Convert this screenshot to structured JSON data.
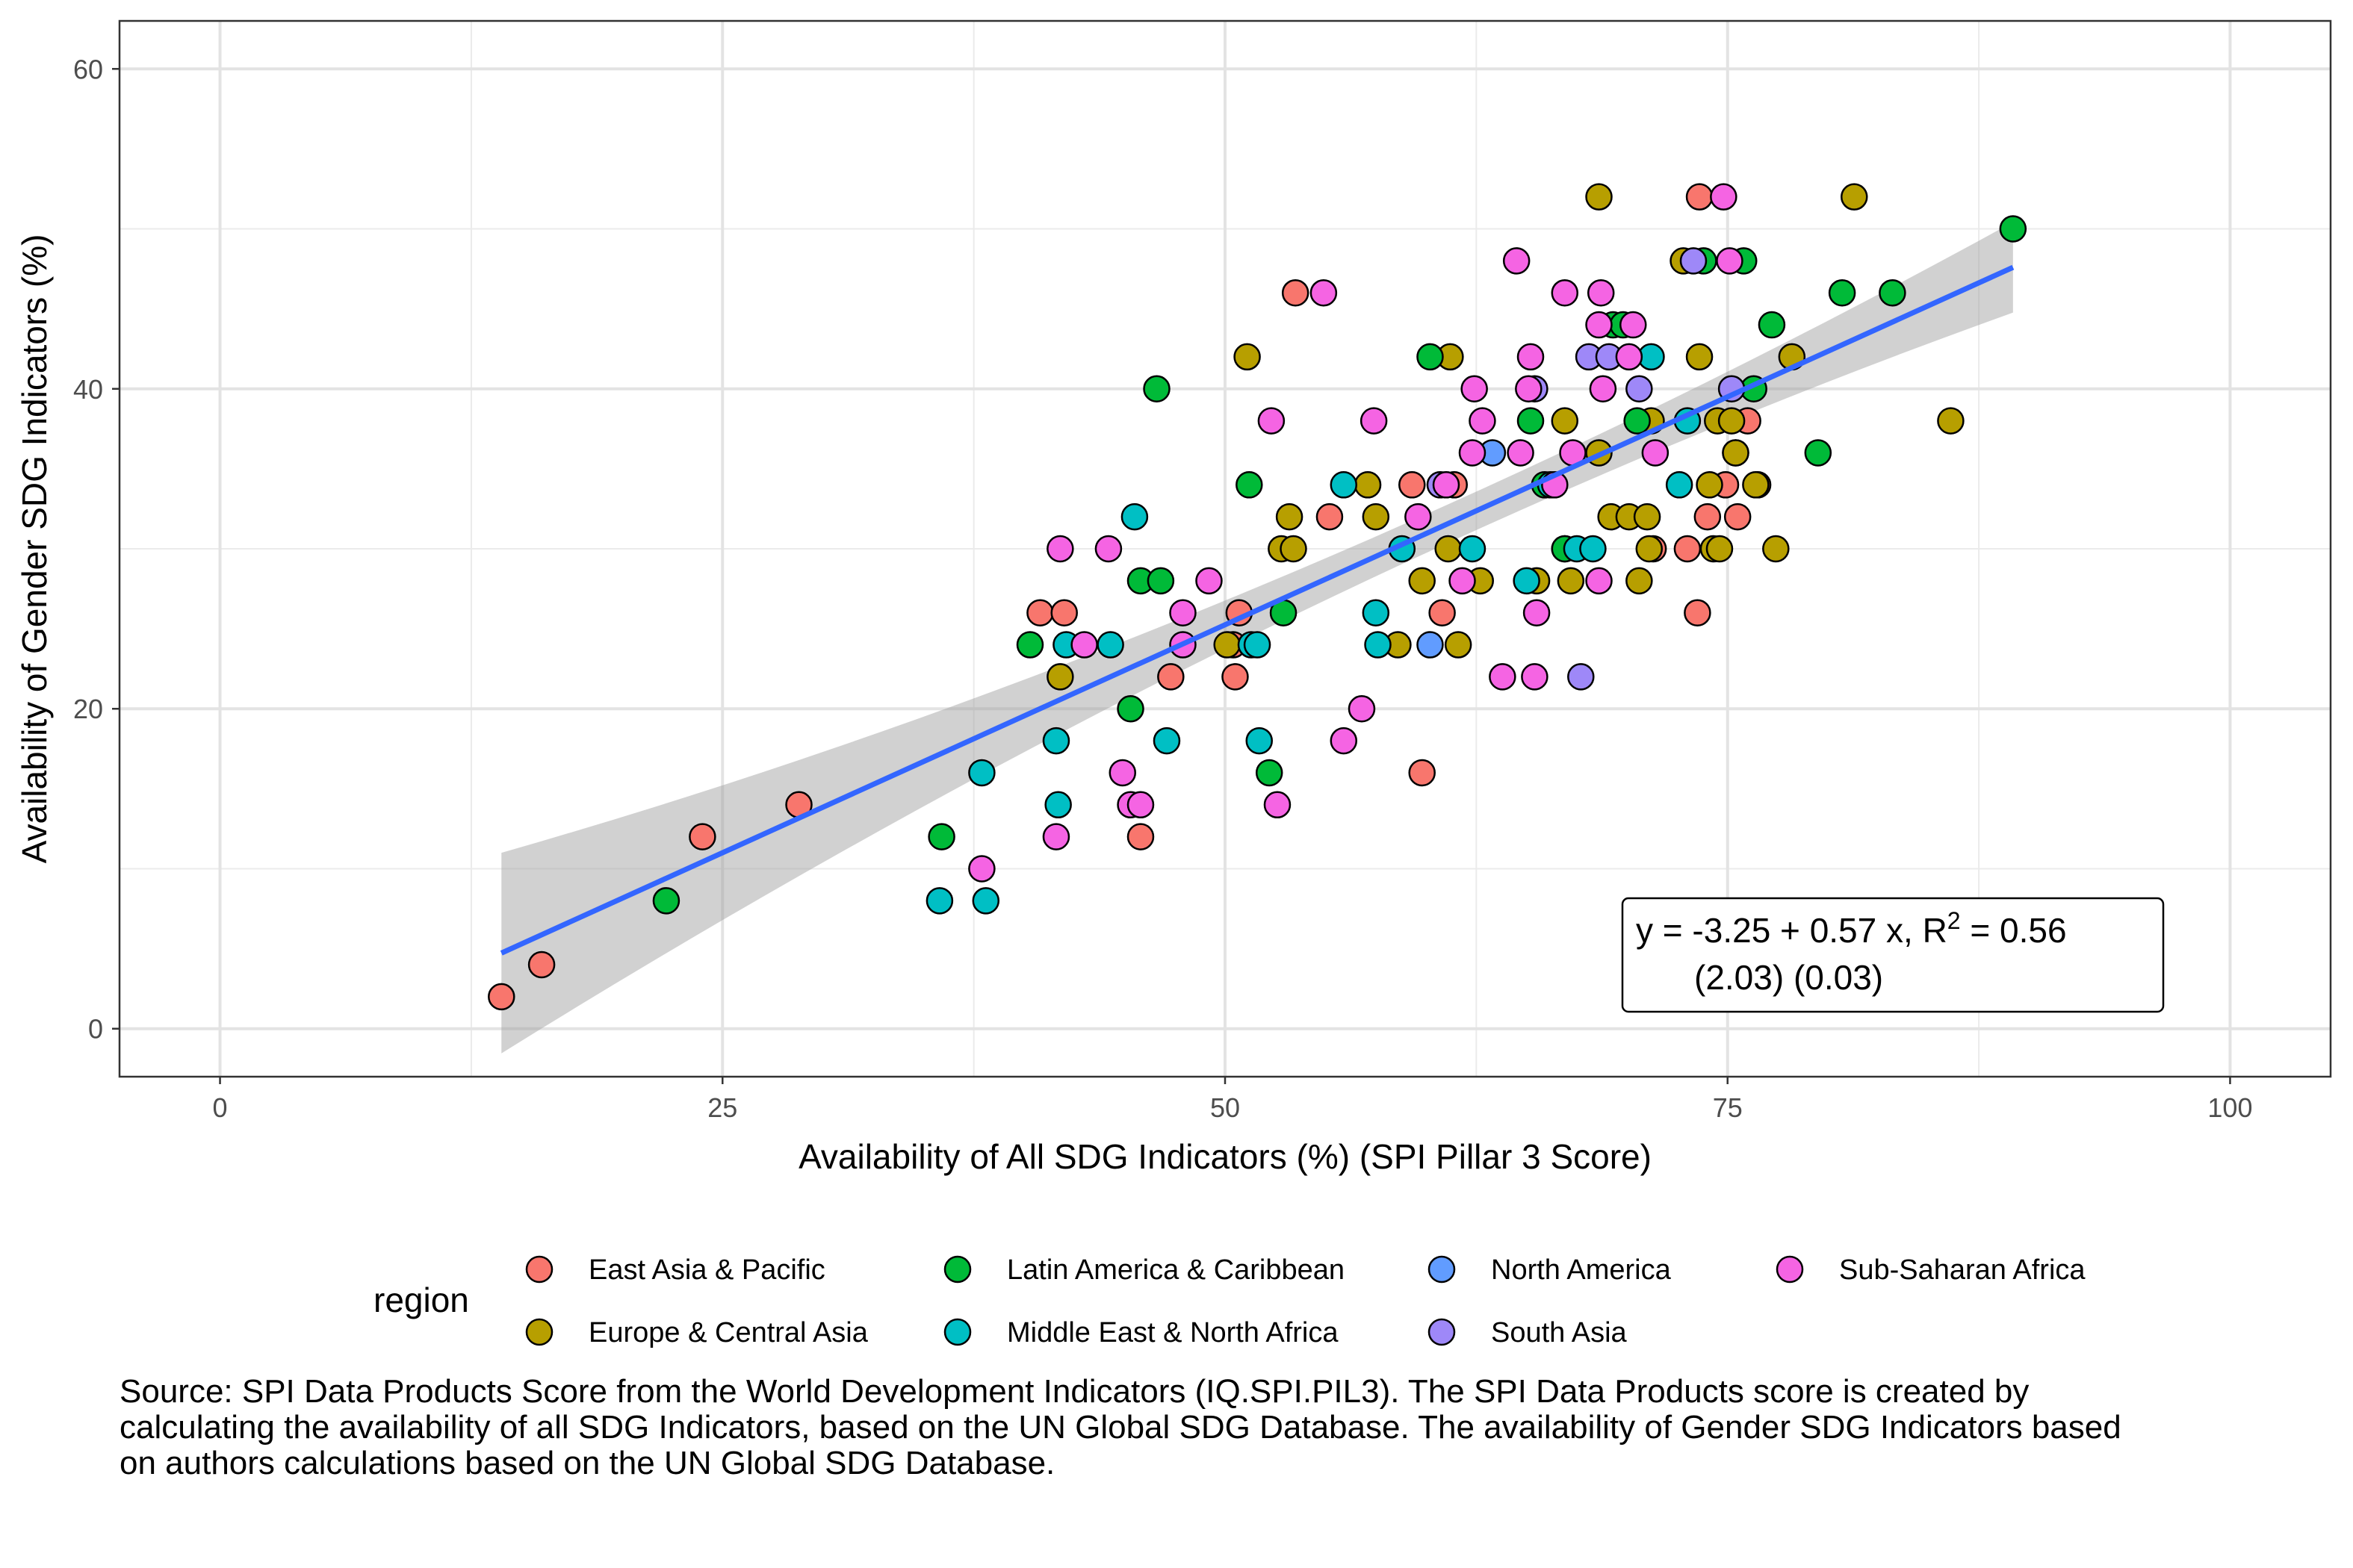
{
  "caption": "Source: SPI Data Products Score from the World Development Indicators (IQ.SPI.PIL3). The SPI Data Products score is created by calculating the availability of all SDG Indicators, based on the UN Global SDG Database. The availability of Gender SDG Indicators based on authors calculations based on the UN Global SDG Database.",
  "chart_data": {
    "type": "scatter",
    "title": "",
    "xlabel": "Availability of All SDG Indicators (%) (SPI Pillar 3 Score)",
    "ylabel": "Availability of Gender SDG Indicators (%)",
    "xlim": [
      -5,
      105
    ],
    "ylim": [
      -3,
      63
    ],
    "x_ticks": [
      0,
      25,
      50,
      75,
      100
    ],
    "y_ticks": [
      0,
      20,
      40,
      60
    ],
    "grid": true,
    "legend": {
      "title": "region",
      "position": "bottom",
      "entries": [
        {
          "name": "East Asia & Pacific",
          "color": "#F8766D"
        },
        {
          "name": "Europe & Central Asia",
          "color": "#B79F00"
        },
        {
          "name": "Latin America & Caribbean",
          "color": "#00BA38"
        },
        {
          "name": "Middle East & North Africa",
          "color": "#00BFC4"
        },
        {
          "name": "North America",
          "color": "#619CFF"
        },
        {
          "name": "South Asia",
          "color": "#9E88F8"
        },
        {
          "name": "Sub-Saharan Africa",
          "color": "#F564E3"
        }
      ]
    },
    "regression": {
      "intercept": -3.25,
      "slope": 0.57,
      "x_range": [
        14,
        89.2
      ],
      "color": "#3366FF",
      "annotation_line1_prefix": "y = -3.25 + 0.57 x, R",
      "annotation_superscript": "2",
      "annotation_line1_suffix": " = 0.56",
      "annotation_line2": "(2.03) (0.03)"
    },
    "series": [
      {
        "name": "East Asia & Pacific",
        "color": "#F8766D",
        "points": [
          [
            14,
            2
          ],
          [
            16,
            4
          ],
          [
            24,
            12
          ],
          [
            28.8,
            14
          ],
          [
            40.8,
            26
          ],
          [
            42,
            26
          ],
          [
            47.3,
            22
          ],
          [
            45.8,
            12
          ],
          [
            50.4,
            24
          ],
          [
            50.5,
            22
          ],
          [
            50.7,
            26
          ],
          [
            53.5,
            46
          ],
          [
            55.2,
            32
          ],
          [
            59.3,
            34
          ],
          [
            60.8,
            26
          ],
          [
            59.8,
            16
          ],
          [
            61.4,
            34
          ],
          [
            71.3,
            30
          ],
          [
            73,
            30
          ],
          [
            73.5,
            26
          ],
          [
            73.6,
            52
          ],
          [
            74,
            32
          ],
          [
            74.9,
            34
          ],
          [
            75.5,
            32
          ],
          [
            76,
            38
          ],
          [
            75.4,
            36
          ],
          [
            76.5,
            34
          ]
        ]
      },
      {
        "name": "Europe & Central Asia",
        "color": "#B79F00",
        "points": [
          [
            41.8,
            22
          ],
          [
            50.1,
            24
          ],
          [
            51.1,
            42
          ],
          [
            52.8,
            30
          ],
          [
            53.2,
            32
          ],
          [
            53.4,
            30
          ],
          [
            57.1,
            34
          ],
          [
            57.5,
            32
          ],
          [
            58.6,
            24
          ],
          [
            59.8,
            28
          ],
          [
            61.2,
            42
          ],
          [
            61.1,
            30
          ],
          [
            61.6,
            24
          ],
          [
            62.7,
            28
          ],
          [
            65.5,
            28
          ],
          [
            66.9,
            38
          ],
          [
            66.9,
            30
          ],
          [
            67.2,
            28
          ],
          [
            68.6,
            52
          ],
          [
            68.6,
            36
          ],
          [
            69.2,
            32
          ],
          [
            70.1,
            32
          ],
          [
            70.6,
            28
          ],
          [
            71.1,
            30
          ],
          [
            71,
            32
          ],
          [
            71.2,
            38
          ],
          [
            72.8,
            48
          ],
          [
            73.6,
            42
          ],
          [
            74.1,
            34
          ],
          [
            74.3,
            30
          ],
          [
            74.5,
            38
          ],
          [
            74.6,
            30
          ],
          [
            75.2,
            38
          ],
          [
            75.4,
            36
          ],
          [
            76.4,
            34
          ],
          [
            77.4,
            30
          ],
          [
            78.2,
            42
          ],
          [
            81.3,
            52
          ],
          [
            86.1,
            38
          ]
        ]
      },
      {
        "name": "Latin America & Caribbean",
        "color": "#00BA38",
        "points": [
          [
            22.2,
            8
          ],
          [
            35.9,
            12
          ],
          [
            40.3,
            24
          ],
          [
            45.3,
            20
          ],
          [
            45.8,
            28
          ],
          [
            46.6,
            40
          ],
          [
            46.8,
            28
          ],
          [
            51.2,
            34
          ],
          [
            52.2,
            16
          ],
          [
            52.9,
            26
          ],
          [
            60.2,
            42
          ],
          [
            65.2,
            38
          ],
          [
            65.9,
            34
          ],
          [
            66.9,
            30
          ],
          [
            69.3,
            44
          ],
          [
            69.8,
            44
          ],
          [
            70.5,
            38
          ],
          [
            73.8,
            48
          ],
          [
            75.8,
            48
          ],
          [
            76.3,
            40
          ],
          [
            77.2,
            44
          ],
          [
            79.5,
            36
          ],
          [
            80.7,
            46
          ],
          [
            83.2,
            46
          ],
          [
            89.2,
            50
          ]
        ]
      },
      {
        "name": "Middle East & North Africa",
        "color": "#00BFC4",
        "points": [
          [
            35.8,
            8
          ],
          [
            37.9,
            16
          ],
          [
            38.1,
            8
          ],
          [
            41.6,
            18
          ],
          [
            41.7,
            14
          ],
          [
            42.1,
            24
          ],
          [
            44.3,
            24
          ],
          [
            45.5,
            32
          ],
          [
            47.1,
            18
          ],
          [
            51.3,
            24
          ],
          [
            51.6,
            24
          ],
          [
            51.7,
            18
          ],
          [
            55.9,
            34
          ],
          [
            57.5,
            26
          ],
          [
            57.6,
            24
          ],
          [
            58.8,
            30
          ],
          [
            62.3,
            30
          ],
          [
            65,
            28
          ],
          [
            66.2,
            34
          ],
          [
            67.5,
            30
          ],
          [
            68.3,
            30
          ],
          [
            71.2,
            42
          ],
          [
            72.6,
            34
          ],
          [
            73,
            38
          ]
        ]
      },
      {
        "name": "North America",
        "color": "#619CFF",
        "points": [
          [
            60.2,
            24
          ],
          [
            63.3,
            36
          ]
        ]
      },
      {
        "name": "South Asia",
        "color": "#9E88F8",
        "points": [
          [
            60.7,
            34
          ],
          [
            65.4,
            40
          ],
          [
            67.7,
            22
          ],
          [
            68.1,
            42
          ],
          [
            69.1,
            42
          ],
          [
            70.6,
            40
          ],
          [
            73.3,
            48
          ],
          [
            75.2,
            40
          ]
        ]
      },
      {
        "name": "Sub-Saharan Africa",
        "color": "#F564E3",
        "points": [
          [
            37.9,
            10
          ],
          [
            41.6,
            12
          ],
          [
            41.8,
            30
          ],
          [
            43,
            24
          ],
          [
            44.2,
            30
          ],
          [
            44.9,
            16
          ],
          [
            45.3,
            14
          ],
          [
            45.8,
            14
          ],
          [
            47.9,
            26
          ],
          [
            47.9,
            24
          ],
          [
            49.2,
            28
          ],
          [
            52.3,
            38
          ],
          [
            52.6,
            14
          ],
          [
            54.9,
            46
          ],
          [
            55.9,
            18
          ],
          [
            56.8,
            20
          ],
          [
            57.4,
            38
          ],
          [
            59.6,
            32
          ],
          [
            61,
            34
          ],
          [
            61.8,
            28
          ],
          [
            62.4,
            40
          ],
          [
            62.3,
            36
          ],
          [
            62.8,
            38
          ],
          [
            63.8,
            22
          ],
          [
            64.5,
            48
          ],
          [
            64.7,
            36
          ],
          [
            65.1,
            40
          ],
          [
            65.2,
            42
          ],
          [
            65.4,
            22
          ],
          [
            65.5,
            26
          ],
          [
            66.4,
            34
          ],
          [
            66.9,
            46
          ],
          [
            67.3,
            36
          ],
          [
            68.6,
            44
          ],
          [
            68.7,
            46
          ],
          [
            68.8,
            40
          ],
          [
            68.6,
            28
          ],
          [
            70.1,
            42
          ],
          [
            70.3,
            44
          ],
          [
            71.4,
            36
          ],
          [
            75.1,
            48
          ],
          [
            74.8,
            52
          ]
        ]
      }
    ]
  }
}
